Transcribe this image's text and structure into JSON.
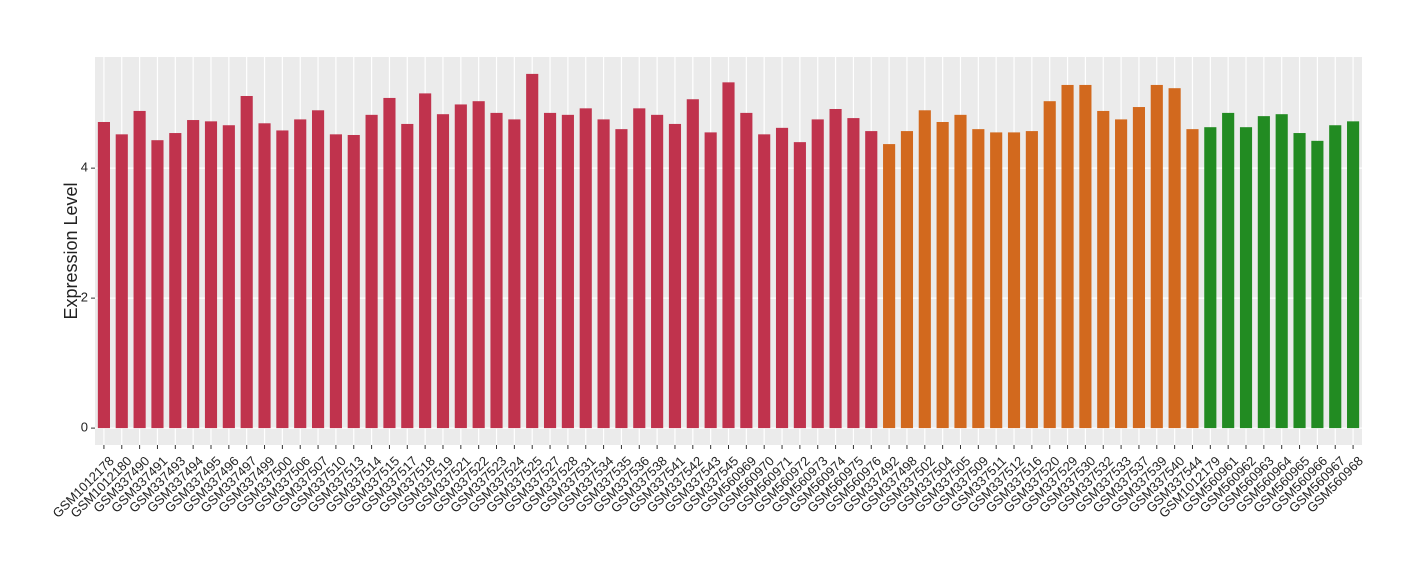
{
  "chart_data": {
    "type": "bar",
    "y_label": "Expression Level",
    "categories": [
      "GSM1012178",
      "GSM1012180",
      "GSM337490",
      "GSM337491",
      "GSM337493",
      "GSM337494",
      "GSM337495",
      "GSM337496",
      "GSM337497",
      "GSM337499",
      "GSM337500",
      "GSM337506",
      "GSM337507",
      "GSM337510",
      "GSM337513",
      "GSM337514",
      "GSM337515",
      "GSM337517",
      "GSM337518",
      "GSM337519",
      "GSM337521",
      "GSM337522",
      "GSM337523",
      "GSM337524",
      "GSM337525",
      "GSM337527",
      "GSM337528",
      "GSM337531",
      "GSM337534",
      "GSM337535",
      "GSM337536",
      "GSM337538",
      "GSM337541",
      "GSM337542",
      "GSM337543",
      "GSM337545",
      "GSM560969",
      "GSM560970",
      "GSM560971",
      "GSM560972",
      "GSM560973",
      "GSM560974",
      "GSM560975",
      "GSM560976",
      "GSM337492",
      "GSM337498",
      "GSM337502",
      "GSM337504",
      "GSM337505",
      "GSM337509",
      "GSM337511",
      "GSM337512",
      "GSM337516",
      "GSM337520",
      "GSM337529",
      "GSM337530",
      "GSM337532",
      "GSM337533",
      "GSM337537",
      "GSM337539",
      "GSM337540",
      "GSM337544",
      "GSM1012179",
      "GSM560961",
      "GSM560962",
      "GSM560963",
      "GSM560964",
      "GSM560965",
      "GSM560966",
      "GSM560967",
      "GSM560968"
    ],
    "values": [
      4.71,
      4.52,
      4.88,
      4.43,
      4.54,
      4.74,
      4.72,
      4.66,
      5.11,
      4.69,
      4.58,
      4.75,
      4.89,
      4.52,
      4.51,
      4.82,
      5.08,
      4.68,
      5.15,
      4.83,
      4.98,
      5.03,
      4.85,
      4.75,
      5.45,
      4.85,
      4.82,
      4.92,
      4.75,
      4.6,
      4.92,
      4.82,
      4.68,
      5.06,
      4.55,
      5.32,
      4.85,
      4.52,
      4.62,
      4.4,
      4.75,
      4.91,
      4.77,
      4.57,
      4.37,
      4.57,
      4.89,
      4.71,
      4.82,
      4.6,
      4.55,
      4.55,
      4.57,
      5.03,
      5.28,
      5.28,
      4.88,
      4.75,
      4.94,
      5.28,
      5.23,
      4.6,
      4.63,
      4.85,
      4.63,
      4.8,
      4.83,
      4.54,
      4.42,
      4.66,
      4.72
    ],
    "colors": [
      "#c0334d",
      "#c0334d",
      "#c0334d",
      "#c0334d",
      "#c0334d",
      "#c0334d",
      "#c0334d",
      "#c0334d",
      "#c0334d",
      "#c0334d",
      "#c0334d",
      "#c0334d",
      "#c0334d",
      "#c0334d",
      "#c0334d",
      "#c0334d",
      "#c0334d",
      "#c0334d",
      "#c0334d",
      "#c0334d",
      "#c0334d",
      "#c0334d",
      "#c0334d",
      "#c0334d",
      "#c0334d",
      "#c0334d",
      "#c0334d",
      "#c0334d",
      "#c0334d",
      "#c0334d",
      "#c0334d",
      "#c0334d",
      "#c0334d",
      "#c0334d",
      "#c0334d",
      "#c0334d",
      "#c0334d",
      "#c0334d",
      "#c0334d",
      "#c0334d",
      "#c0334d",
      "#c0334d",
      "#c0334d",
      "#c0334d",
      "#d2691e",
      "#d2691e",
      "#d2691e",
      "#d2691e",
      "#d2691e",
      "#d2691e",
      "#d2691e",
      "#d2691e",
      "#d2691e",
      "#d2691e",
      "#d2691e",
      "#d2691e",
      "#d2691e",
      "#d2691e",
      "#d2691e",
      "#d2691e",
      "#d2691e",
      "#d2691e",
      "#228b22",
      "#228b22",
      "#228b22",
      "#228b22",
      "#228b22",
      "#228b22",
      "#228b22",
      "#228b22",
      "#228b22"
    ],
    "ylim": [
      -0.26,
      5.71
    ],
    "yticks": [
      0,
      2,
      4
    ],
    "grid": true
  }
}
